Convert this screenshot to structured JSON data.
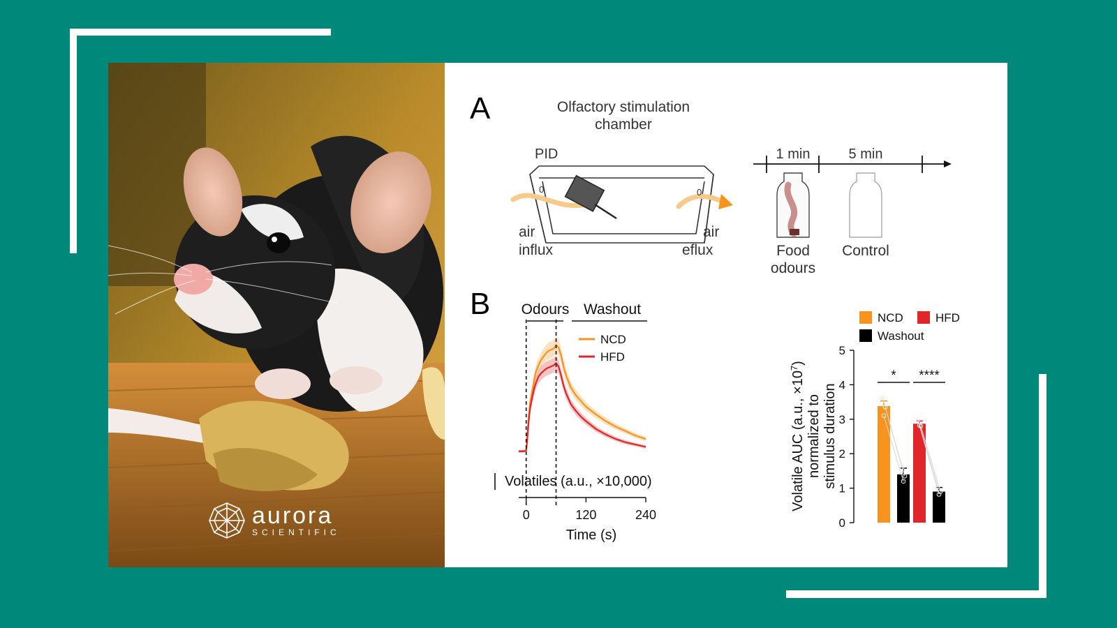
{
  "colors": {
    "background": "#00897b",
    "ncd": "#f7941d",
    "hfd": "#e0262b",
    "washout": "#000000"
  },
  "brand": {
    "name": "aurora",
    "tagline": "SCIENTIFIC"
  },
  "panel_a": {
    "letter": "A",
    "title_line1": "Olfactory stimulation",
    "title_line2": "chamber",
    "pid_label": "PID",
    "air_in_1": "air",
    "air_in_2": "influx",
    "air_out_1": "air",
    "air_out_2": "eflux",
    "timeline_1": "1 min",
    "timeline_2": "5 min",
    "bottle1_line1": "Food",
    "bottle1_line2": "odours",
    "bottle2": "Control"
  },
  "panel_b": {
    "letter": "B"
  },
  "chart_data": [
    {
      "type": "line",
      "phase_labels": [
        "Odours",
        "Washout"
      ],
      "ylabel": "Volatiles (a.u., ×10,000)",
      "xlabel": "Time (s)",
      "xticks": [
        0,
        120,
        240
      ],
      "xlim": [
        -15,
        240
      ],
      "odour_window": [
        0,
        60
      ],
      "legend_position": "top-right",
      "series": [
        {
          "name": "NCD",
          "color": "#f7941d",
          "x": [
            -15,
            -8,
            -3,
            0,
            2,
            5,
            8,
            12,
            16,
            20,
            25,
            30,
            35,
            40,
            45,
            50,
            55,
            60,
            65,
            70,
            75,
            80,
            90,
            100,
            110,
            120,
            140,
            160,
            180,
            200,
            220,
            240
          ],
          "y": [
            0.2,
            0.2,
            0.22,
            0.3,
            1.3,
            3.3,
            4.6,
            5.6,
            6.6,
            7.4,
            7.9,
            8.4,
            8.7,
            9.0,
            9.2,
            9.3,
            9.4,
            9.7,
            9.5,
            8.8,
            7.8,
            7.0,
            5.9,
            5.2,
            4.7,
            4.2,
            3.5,
            2.9,
            2.4,
            2.0,
            1.6,
            1.3
          ]
        },
        {
          "name": "HFD",
          "color": "#e0262b",
          "x": [
            -15,
            -8,
            -3,
            0,
            2,
            5,
            8,
            12,
            16,
            20,
            25,
            30,
            35,
            40,
            45,
            50,
            55,
            60,
            65,
            70,
            75,
            80,
            90,
            100,
            110,
            120,
            140,
            160,
            180,
            200,
            220,
            240
          ],
          "y": [
            0.2,
            0.2,
            0.22,
            0.3,
            1.1,
            2.9,
            4.1,
            5.0,
            5.8,
            6.4,
            6.9,
            7.2,
            7.4,
            7.6,
            7.7,
            7.8,
            7.9,
            8.1,
            7.8,
            7.0,
            6.1,
            5.4,
            4.4,
            3.8,
            3.3,
            2.9,
            2.2,
            1.7,
            1.3,
            1.0,
            0.8,
            0.6
          ]
        }
      ]
    },
    {
      "type": "bar",
      "ylabel_line1": "Volatile AUC (a.u., ×10",
      "ylabel_sup": "7",
      "ylabel_line1_end": ")",
      "ylabel_line2": "normalized to",
      "ylabel_line3": "stimulus duration",
      "ylim": [
        0,
        5
      ],
      "yticks": [
        0,
        1,
        2,
        3,
        4,
        5
      ],
      "legend": [
        {
          "name": "NCD",
          "color": "#f7941d"
        },
        {
          "name": "HFD",
          "color": "#e0262b"
        },
        {
          "name": "Washout",
          "color": "#000000"
        }
      ],
      "bars": [
        {
          "group": "NCD",
          "series": "NCD",
          "value": 3.38,
          "error": 0.15,
          "color": "#f7941d",
          "points": [
            3.65,
            3.1,
            3.35
          ]
        },
        {
          "group": "NCD",
          "series": "Washout",
          "value": 1.4,
          "error": 0.18,
          "color": "#000000",
          "points": [
            1.6,
            1.2,
            1.35
          ]
        },
        {
          "group": "HFD",
          "series": "HFD",
          "value": 2.87,
          "error": 0.08,
          "color": "#e0262b",
          "points": [
            2.98,
            2.82,
            2.8
          ]
        },
        {
          "group": "HFD",
          "series": "Washout",
          "value": 0.9,
          "error": 0.12,
          "color": "#000000",
          "points": [
            1.05,
            0.82,
            0.9
          ]
        }
      ],
      "significance": [
        {
          "label": "*",
          "group": "NCD"
        },
        {
          "label": "****",
          "group": "HFD"
        }
      ]
    }
  ]
}
